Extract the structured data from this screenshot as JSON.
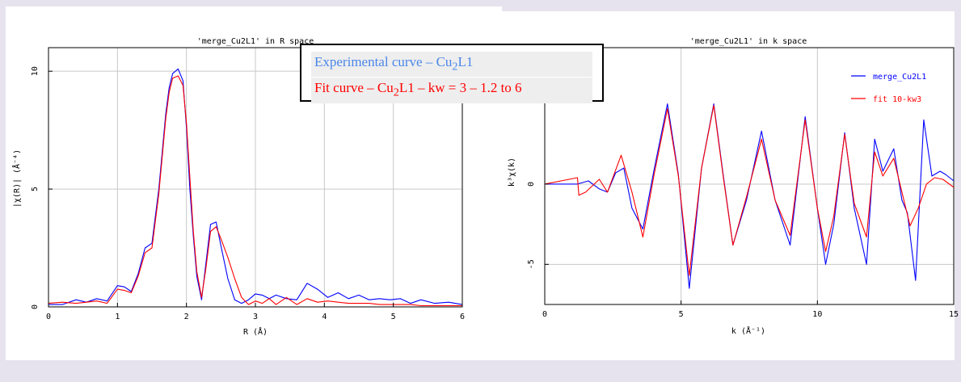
{
  "chart_data": [
    {
      "type": "line",
      "title": "'merge_Cu2L1' in R space",
      "xlabel": "R (Å)",
      "ylabel": "|χ(R)| (Å⁻⁴)",
      "xlim": [
        0,
        6
      ],
      "ylim": [
        0,
        11
      ],
      "xticks": [
        0,
        1,
        2,
        3,
        4,
        5,
        6
      ],
      "yticks": [
        0,
        5,
        10
      ],
      "grid": true,
      "series": [
        {
          "color": "#0000ff",
          "x": [
            0,
            0.2,
            0.4,
            0.55,
            0.7,
            0.85,
            1.0,
            1.1,
            1.2,
            1.3,
            1.4,
            1.5,
            1.6,
            1.7,
            1.75,
            1.8,
            1.88,
            1.95,
            2.0,
            2.05,
            2.1,
            2.15,
            2.22,
            2.28,
            2.35,
            2.43,
            2.5,
            2.6,
            2.7,
            2.8,
            2.9,
            3.0,
            3.1,
            3.2,
            3.3,
            3.45,
            3.6,
            3.75,
            3.9,
            4.05,
            4.2,
            4.35,
            4.5,
            4.65,
            4.8,
            4.95,
            5.1,
            5.25,
            5.4,
            5.6,
            5.8,
            6.0
          ],
          "y": [
            0.1,
            0.1,
            0.3,
            0.2,
            0.35,
            0.25,
            0.9,
            0.85,
            0.65,
            1.4,
            2.5,
            2.7,
            5.0,
            8.2,
            9.3,
            9.9,
            10.1,
            9.6,
            7.6,
            5.0,
            3.0,
            1.3,
            0.3,
            1.8,
            3.5,
            3.6,
            2.6,
            1.2,
            0.3,
            0.15,
            0.3,
            0.55,
            0.5,
            0.35,
            0.5,
            0.35,
            0.3,
            1.0,
            0.75,
            0.4,
            0.6,
            0.35,
            0.5,
            0.3,
            0.35,
            0.3,
            0.35,
            0.15,
            0.3,
            0.15,
            0.2,
            0.1
          ]
        },
        {
          "color": "#ff0000",
          "x": [
            0,
            0.2,
            0.4,
            0.55,
            0.7,
            0.85,
            1.0,
            1.1,
            1.2,
            1.3,
            1.4,
            1.5,
            1.6,
            1.7,
            1.75,
            1.8,
            1.88,
            1.95,
            2.0,
            2.05,
            2.1,
            2.15,
            2.22,
            2.28,
            2.35,
            2.43,
            2.5,
            2.6,
            2.7,
            2.8,
            2.9,
            3.0,
            3.1,
            3.2,
            3.3,
            3.45,
            3.6,
            3.75,
            3.9,
            4.05,
            4.2,
            4.35,
            4.5,
            4.65,
            4.8,
            4.95,
            5.1,
            5.25,
            5.4,
            5.6,
            5.8,
            6.0
          ],
          "y": [
            0.15,
            0.2,
            0.15,
            0.2,
            0.25,
            0.15,
            0.75,
            0.7,
            0.6,
            1.3,
            2.3,
            2.5,
            4.8,
            8.0,
            9.1,
            9.7,
            9.8,
            9.4,
            7.8,
            5.5,
            3.2,
            1.5,
            0.4,
            1.6,
            3.2,
            3.4,
            2.9,
            2.1,
            1.2,
            0.4,
            0.1,
            0.25,
            0.15,
            0.35,
            0.1,
            0.4,
            0.1,
            0.35,
            0.2,
            0.25,
            0.2,
            0.15,
            0.15,
            0.15,
            0.1,
            0.1,
            0.1,
            0.1,
            0.05,
            0.05,
            0.05,
            0.05
          ]
        }
      ]
    },
    {
      "type": "line",
      "title": "'merge_Cu2L1' in k space",
      "xlabel": "k (Å⁻¹)",
      "ylabel": "k³χ(k)",
      "xlim": [
        0,
        15
      ],
      "ylim": [
        -7.5,
        8.5
      ],
      "xticks": [
        0,
        5,
        10,
        15
      ],
      "yticks": [
        -5,
        0
      ],
      "grid": true,
      "legend": "top-right",
      "series": [
        {
          "name": "merge_Cu2L1",
          "color": "#0000ff",
          "x": [
            0,
            1.2,
            1.6,
            2.0,
            2.3,
            2.6,
            2.9,
            3.2,
            3.6,
            4.0,
            4.5,
            4.9,
            5.3,
            5.75,
            6.2,
            6.55,
            6.9,
            7.4,
            7.95,
            8.45,
            9.0,
            9.55,
            10.0,
            10.3,
            10.6,
            11.0,
            11.35,
            11.8,
            12.1,
            12.4,
            12.8,
            13.1,
            13.3,
            13.6,
            13.9,
            14.2,
            14.5,
            14.7,
            15.0
          ],
          "y": [
            0,
            0,
            0.2,
            -0.3,
            -0.5,
            0.7,
            1.0,
            -1.5,
            -2.8,
            0.8,
            5.0,
            0.6,
            -6.5,
            1.0,
            5.0,
            0.5,
            -3.8,
            -1.0,
            3.3,
            -1.0,
            -3.8,
            4.2,
            -1.5,
            -5.0,
            -2.5,
            3.2,
            -1.5,
            -5.0,
            2.8,
            0.8,
            2.2,
            -1.0,
            -1.8,
            -6.0,
            4.0,
            0.5,
            0.8,
            0.6,
            0.2
          ]
        },
        {
          "name": "fit 10-kw3",
          "color": "#ff0000",
          "x": [
            0,
            1.2,
            1.25,
            1.5,
            2.0,
            2.3,
            2.8,
            3.2,
            3.6,
            4.0,
            4.5,
            4.9,
            5.3,
            5.75,
            6.2,
            6.55,
            6.9,
            7.4,
            7.95,
            8.45,
            9.0,
            9.55,
            10.0,
            10.3,
            10.6,
            11.0,
            11.35,
            11.8,
            12.1,
            12.4,
            12.8,
            13.1,
            13.4,
            13.7,
            14.0,
            14.3,
            14.6,
            15.0
          ],
          "y": [
            0,
            0.4,
            -0.7,
            -0.5,
            0.3,
            -0.5,
            1.8,
            -0.5,
            -3.3,
            0.5,
            4.7,
            0.5,
            -5.7,
            1.0,
            4.9,
            0.4,
            -3.8,
            -0.8,
            2.8,
            -1.0,
            -3.2,
            4.0,
            -1.5,
            -4.2,
            -2.0,
            3.1,
            -1.2,
            -3.3,
            2.0,
            0.5,
            1.6,
            -0.5,
            -2.6,
            -1.5,
            0.0,
            0.4,
            0.3,
            -0.2
          ]
        }
      ]
    }
  ],
  "annotation": {
    "experimental_prefix": "Experimental curve – Cu",
    "experimental_sub": "2",
    "experimental_suffix": "L1",
    "fit_prefix": "Fit curve – Cu",
    "fit_sub": "2",
    "fit_suffix": "L1 – kw = 3 – 1.2 to 6",
    "experimental_color": "#4a86e8",
    "fit_color": "#ff0000"
  }
}
